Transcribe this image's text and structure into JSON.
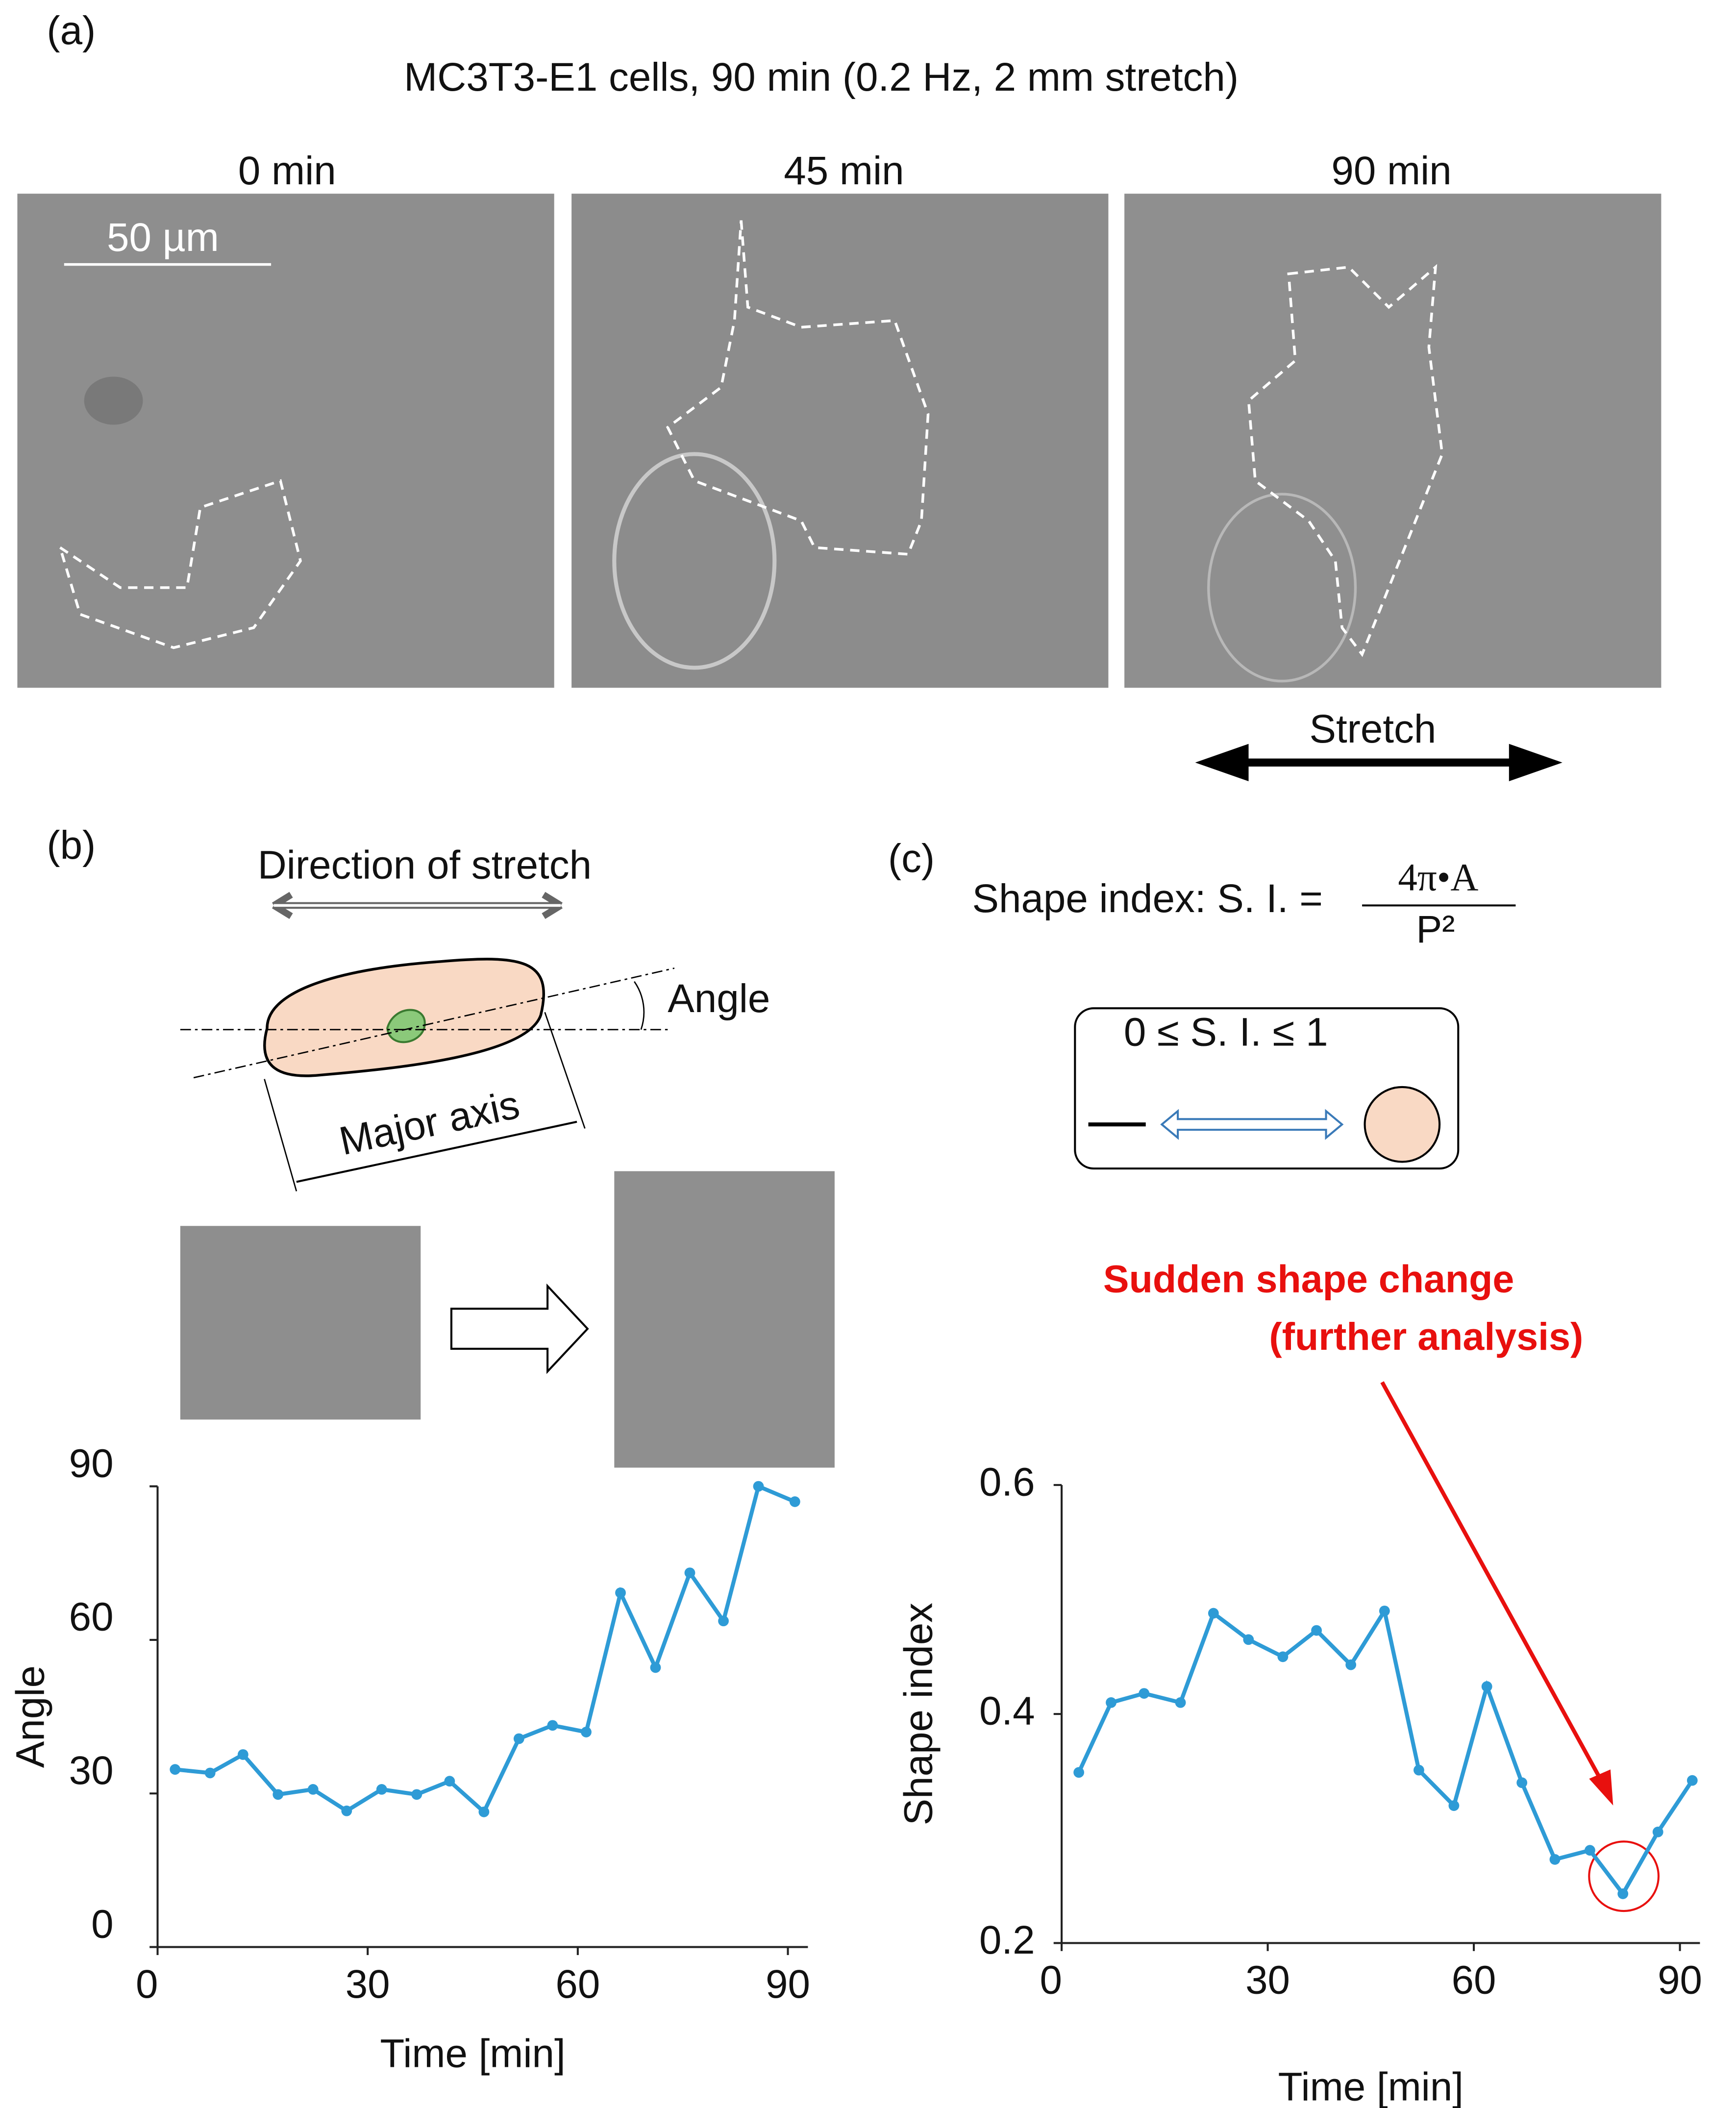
{
  "panel_a": {
    "label": "(a)",
    "title": "MC3T3-E1 cells, 90 min (0.2 Hz, 2 mm stretch)",
    "frames": [
      "0 min",
      "45 min",
      "90 min"
    ],
    "scale_bar": "50 µm",
    "arrow_label": "Stretch"
  },
  "panel_b": {
    "label": "(b)",
    "direction": "Direction of stretch",
    "angle": "Angle",
    "major_axis": "Major axis"
  },
  "panel_c": {
    "label": "(c)",
    "formula_lhs": "Shape index: S. I. =",
    "numerator": "4π•A",
    "denominator": "P²",
    "range": "0 ≤ S. I. ≤ 1"
  },
  "chart_data": [
    {
      "type": "line",
      "x_label": "Time [min]",
      "y_label": "Angle",
      "x": [
        2.5,
        7.5,
        12.2,
        17.2,
        22.2,
        27,
        32,
        37,
        41.7,
        46.6,
        51.6,
        56.4,
        61.2,
        66.1,
        71.1,
        76,
        80.8,
        85.8,
        91
      ],
      "series": [
        {
          "name": "Angle",
          "color": "#2e9bd6",
          "values": [
            34.7,
            34,
            37.6,
            29.8,
            30.8,
            26.6,
            30.8,
            29.8,
            32.4,
            26.4,
            40.7,
            43.3,
            42,
            69.2,
            54.6,
            73.1,
            63.7,
            90,
            87
          ]
        }
      ],
      "xlim": [
        0,
        90
      ],
      "xticks": [
        0,
        30,
        60,
        90
      ],
      "ylim": [
        0,
        90
      ],
      "yticks": [
        0,
        30,
        60,
        90
      ]
    },
    {
      "type": "line",
      "x_label": "Time [min]",
      "y_label": "Shape index",
      "annotation": [
        "Sudden shape change",
        "(further analysis)"
      ],
      "x": [
        2.5,
        7.2,
        12,
        17.3,
        22.1,
        27.2,
        32.2,
        37.1,
        42.1,
        47,
        52,
        57.1,
        61.9,
        67,
        71.8,
        76.9,
        81.7,
        86.8,
        91.8
      ],
      "series": [
        {
          "name": "Shape index",
          "color": "#2e9bd6",
          "values": [
            0.349,
            0.41,
            0.418,
            0.41,
            0.488,
            0.465,
            0.45,
            0.473,
            0.443,
            0.49,
            0.351,
            0.32,
            0.424,
            0.34,
            0.273,
            0.281,
            0.243,
            0.297,
            0.342
          ]
        }
      ],
      "xlim": [
        0,
        90
      ],
      "xticks": [
        0,
        30,
        60,
        90
      ],
      "ylim": [
        0.2,
        0.6
      ],
      "yticks": [
        0.2,
        0.4,
        0.6
      ]
    }
  ]
}
